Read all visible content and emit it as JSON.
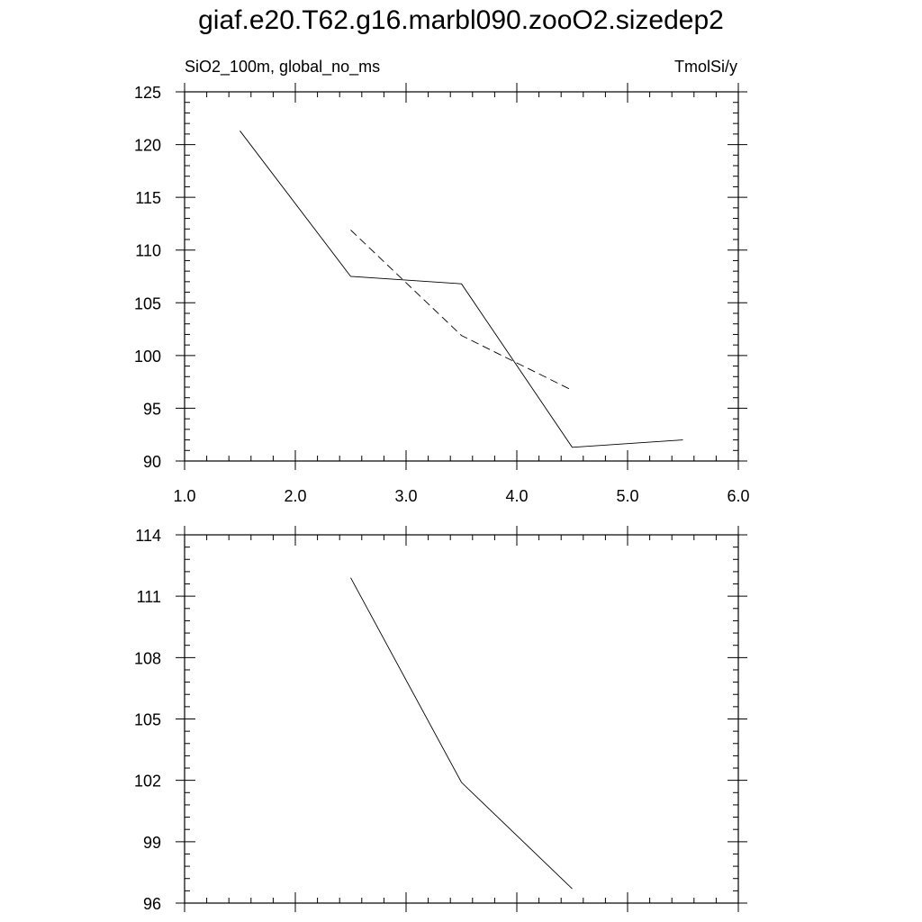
{
  "header": {
    "title": "giaf.e20.T62.g16.marbl090.zooO2.sizedep2",
    "left_subtitle": "SiO2_100m, global_no_ms",
    "right_subtitle": "TmolSi/y"
  },
  "chart_data": [
    {
      "type": "line",
      "title": "SiO2_100m, global_no_ms",
      "units": "TmolSi/y",
      "xlim": [
        1.0,
        6.0
      ],
      "ylim": [
        90,
        125
      ],
      "x_ticks": [
        "1.0",
        "2.0",
        "3.0",
        "4.0",
        "5.0",
        "6.0"
      ],
      "y_ticks": [
        "90",
        "95",
        "100",
        "105",
        "110",
        "115",
        "120",
        "125"
      ],
      "grid": false,
      "series": [
        {
          "style": "solid",
          "x": [
            1.5,
            2.5,
            3.5,
            4.5,
            5.5
          ],
          "y": [
            121.3,
            107.5,
            106.8,
            91.3,
            92.0
          ]
        },
        {
          "style": "dashed",
          "x": [
            2.5,
            3.5,
            4.5
          ],
          "y": [
            111.9,
            101.9,
            96.7
          ]
        }
      ]
    },
    {
      "type": "line",
      "xlim": [
        1.0,
        6.0
      ],
      "ylim": [
        96,
        114
      ],
      "y_ticks": [
        "96",
        "99",
        "102",
        "105",
        "108",
        "111",
        "114"
      ],
      "grid": false,
      "series": [
        {
          "style": "solid",
          "x": [
            2.5,
            3.5,
            4.5
          ],
          "y": [
            111.9,
            101.9,
            96.7
          ]
        }
      ]
    }
  ]
}
